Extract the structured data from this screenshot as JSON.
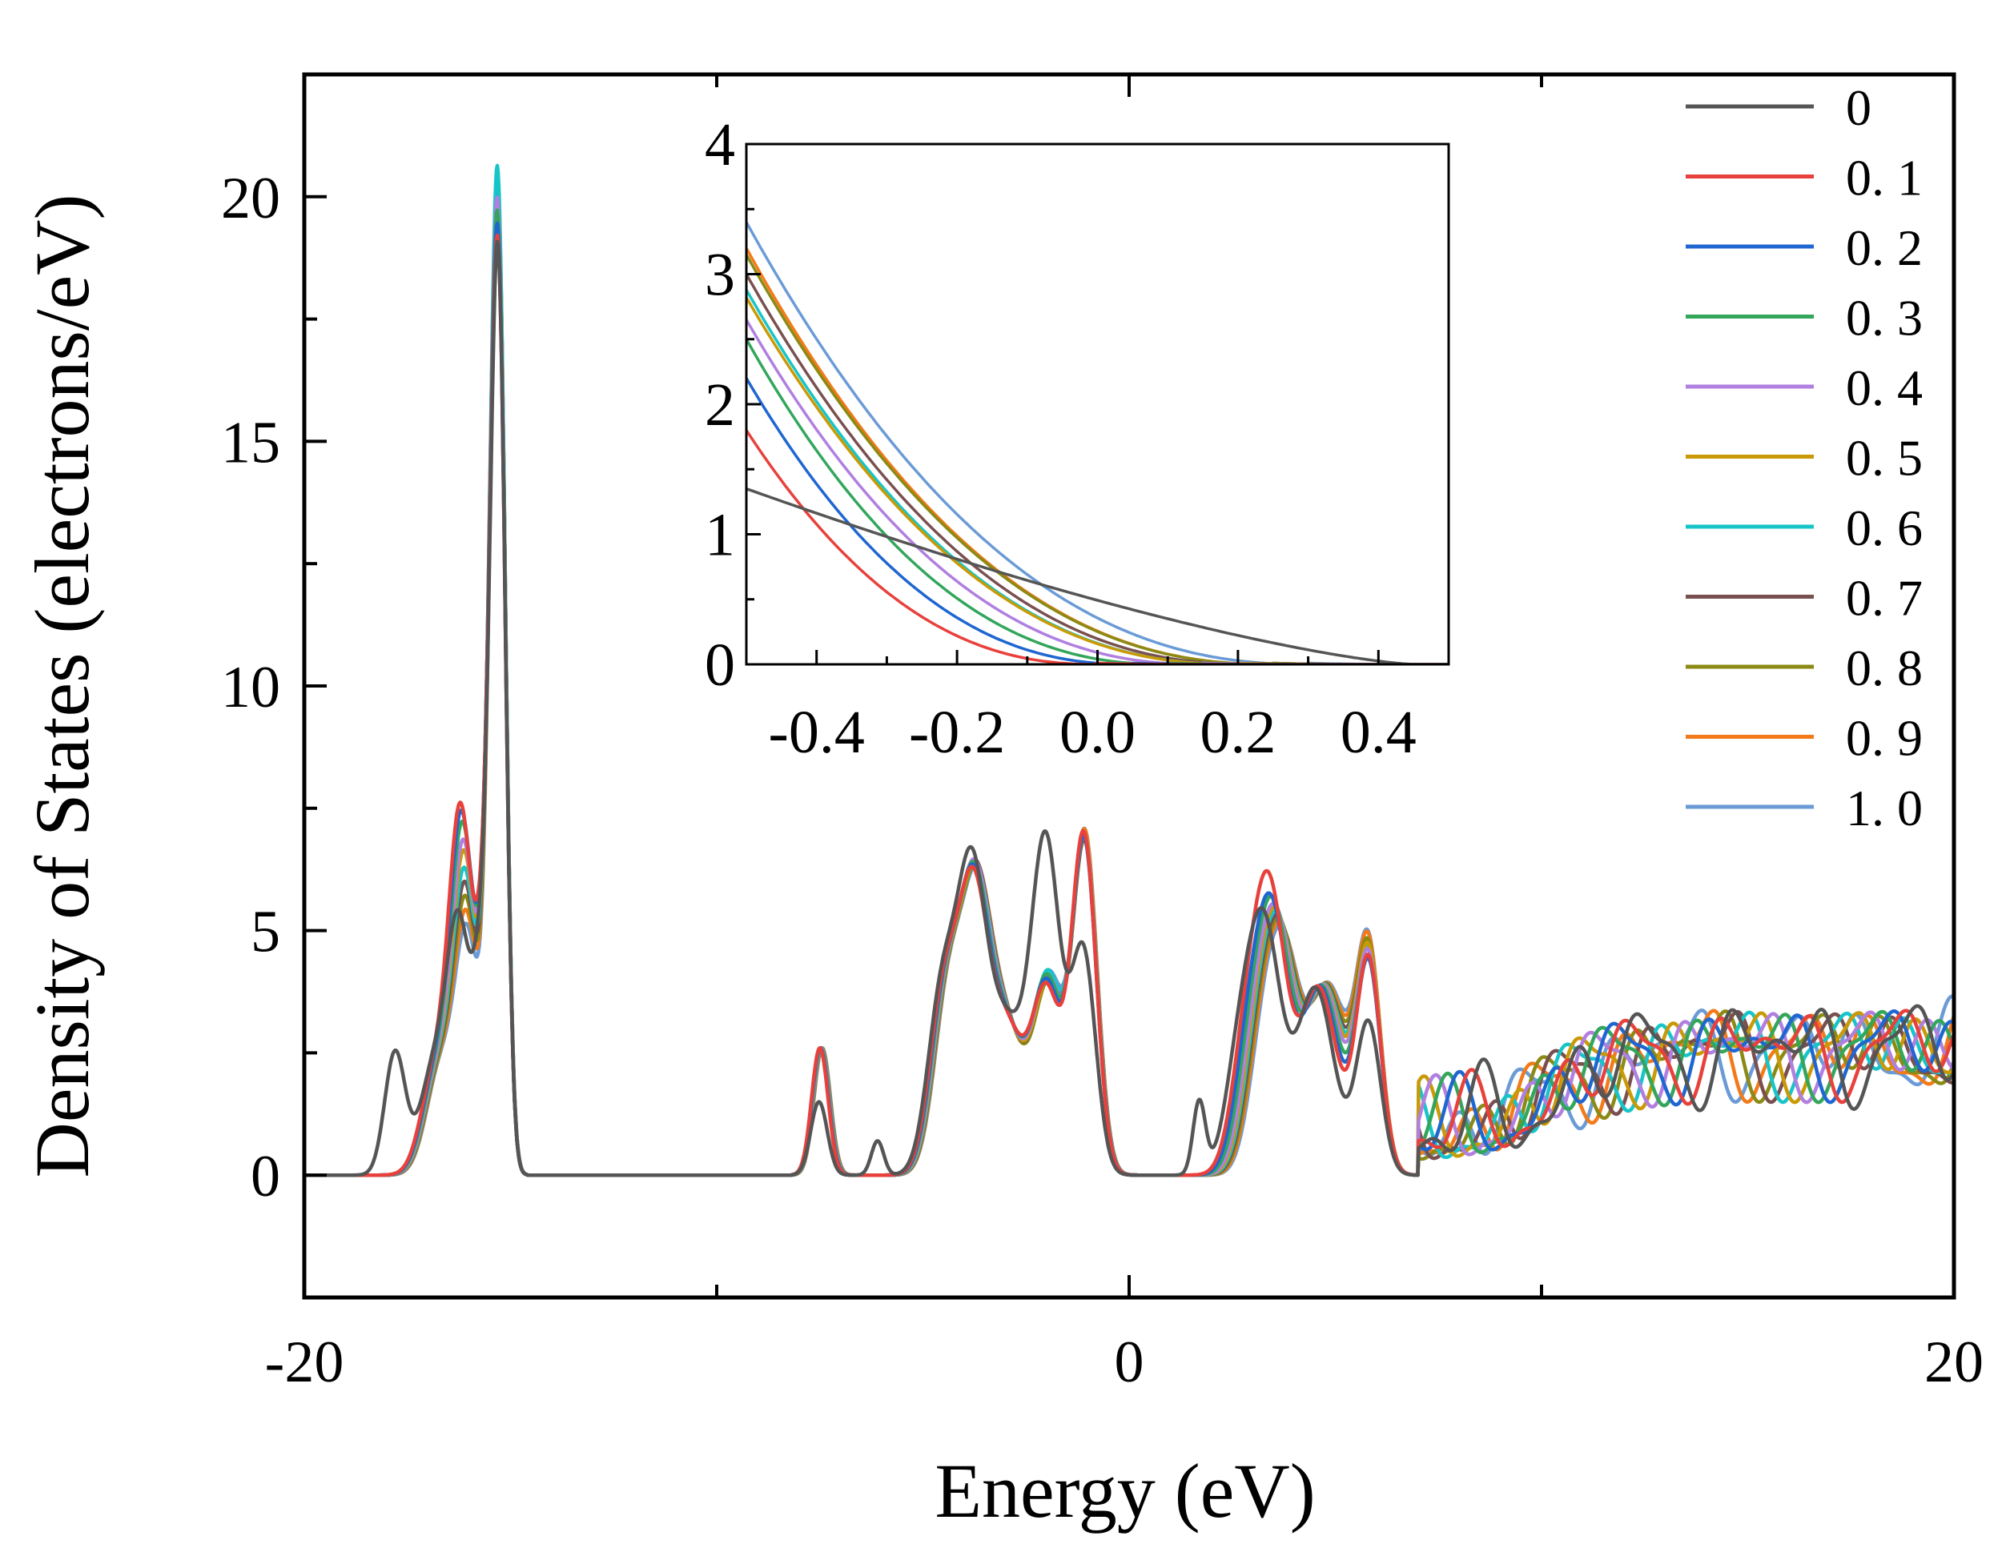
{
  "chart_data": [
    {
      "id": "main",
      "type": "line",
      "title": "",
      "xlabel": "Energy (eV)",
      "ylabel": "Density of States (electrons/eV)",
      "xlim": [
        -20,
        20
      ],
      "ylim": [
        -2.5,
        22.5
      ],
      "xticks": [
        -20,
        0,
        20
      ],
      "xtick_labels": [
        "-20",
        "0",
        "20"
      ],
      "xminor": [
        -10,
        10
      ],
      "yticks": [
        0,
        5,
        10,
        15,
        20
      ],
      "ytick_labels": [
        "0",
        "5",
        "10",
        "15",
        "20"
      ],
      "grid": false,
      "legend_position": "top-right",
      "series": [
        {
          "name": "0",
          "color": "#555555",
          "profile": {
            "shift": -0.2,
            "lowScale": 0.68,
            "sharpPeak": 17.9,
            "pre": 2.5,
            "valenceA": 5.7,
            "valenceB": 6.7,
            "valenceC": 4.5,
            "semicore": 1.5,
            "gap": 1.5,
            "conductionA": 4.9,
            "conductionB": 3.1,
            "ripple": 0.6
          }
        },
        {
          "name": "0. 1",
          "color": "#e8413c",
          "profile": {
            "shift": 0.0,
            "lowScale": 1.0,
            "sharpPeak": 17.4,
            "pre": 0,
            "valenceA": 5.2,
            "valenceB": 3.6,
            "valenceC": 6.9,
            "semicore": 2.6,
            "gap": 0,
            "conductionA": 5.6,
            "conductionB": 4.4,
            "ripple": 0.5
          }
        },
        {
          "name": "0. 2",
          "color": "#1f66d1",
          "profile": {
            "shift": 0.1,
            "lowScale": 0.98,
            "sharpPeak": 17.3,
            "pre": 0,
            "valenceA": 5.2,
            "valenceB": 3.7,
            "valenceC": 6.8,
            "semicore": 2.6,
            "gap": 0,
            "conductionA": 5.1,
            "conductionB": 4.3,
            "ripple": 0.5
          }
        },
        {
          "name": "0. 3",
          "color": "#33a65c",
          "profile": {
            "shift": 0.2,
            "lowScale": 0.95,
            "sharpPeak": 17.2,
            "pre": 0,
            "valenceA": 5.2,
            "valenceB": 3.8,
            "valenceC": 6.8,
            "semicore": 2.6,
            "gap": 0,
            "conductionA": 5.0,
            "conductionB": 4.3,
            "ripple": 0.5
          }
        },
        {
          "name": "0. 4",
          "color": "#b07fe0",
          "profile": {
            "shift": 0.3,
            "lowScale": 0.9,
            "sharpPeak": 17.1,
            "pre": 0,
            "valenceA": 5.2,
            "valenceB": 3.8,
            "valenceC": 6.8,
            "semicore": 2.6,
            "gap": 0,
            "conductionA": 4.8,
            "conductionB": 4.4,
            "ripple": 0.5
          }
        },
        {
          "name": "0. 5",
          "color": "#c99a06",
          "profile": {
            "shift": 0.35,
            "lowScale": 0.87,
            "sharpPeak": 16.9,
            "pre": 0,
            "valenceA": 5.1,
            "valenceB": 3.7,
            "valenceC": 6.8,
            "semicore": 2.6,
            "gap": 0,
            "conductionA": 4.7,
            "conductionB": 4.5,
            "ripple": 0.5
          }
        },
        {
          "name": "0. 6",
          "color": "#17c5c9",
          "profile": {
            "shift": 0.4,
            "lowScale": 0.82,
            "sharpPeak": 17.4,
            "pre": 0,
            "valenceA": 5.1,
            "valenceB": 3.9,
            "valenceC": 6.8,
            "semicore": 2.6,
            "gap": 0,
            "conductionA": 4.6,
            "conductionB": 4.4,
            "ripple": 0.5
          }
        },
        {
          "name": "0. 7",
          "color": "#7a4f4f",
          "profile": {
            "shift": 0.45,
            "lowScale": 0.78,
            "sharpPeak": 17.0,
            "pre": 0,
            "valenceA": 5.1,
            "valenceB": 3.8,
            "valenceC": 6.7,
            "semicore": 2.6,
            "gap": 0,
            "conductionA": 4.5,
            "conductionB": 4.4,
            "ripple": 0.5
          }
        },
        {
          "name": "0. 8",
          "color": "#8a8a14",
          "profile": {
            "shift": 0.5,
            "lowScale": 0.74,
            "sharpPeak": 16.8,
            "pre": 0,
            "valenceA": 5.0,
            "valenceB": 3.7,
            "valenceC": 6.7,
            "semicore": 2.6,
            "gap": 0,
            "conductionA": 4.4,
            "conductionB": 4.5,
            "ripple": 0.5
          }
        },
        {
          "name": "0. 9",
          "color": "#f27a1a",
          "profile": {
            "shift": 0.55,
            "lowScale": 0.7,
            "sharpPeak": 16.6,
            "pre": 0,
            "valenceA": 5.0,
            "valenceB": 3.8,
            "valenceC": 6.9,
            "semicore": 2.6,
            "gap": 0,
            "conductionA": 4.3,
            "conductionB": 4.6,
            "ripple": 0.5
          }
        },
        {
          "name": "1. 0",
          "color": "#6b9bd6",
          "profile": {
            "shift": 0.6,
            "lowScale": 0.66,
            "sharpPeak": 16.4,
            "pre": 0,
            "valenceA": 4.9,
            "valenceB": 3.9,
            "valenceC": 6.9,
            "semicore": 2.6,
            "gap": 0,
            "conductionA": 4.2,
            "conductionB": 4.6,
            "ripple": 0.5
          }
        }
      ]
    },
    {
      "id": "inset",
      "type": "line",
      "title": "",
      "xlabel": "",
      "ylabel": "",
      "xlim": [
        -0.5,
        0.5
      ],
      "ylim": [
        0,
        4
      ],
      "xticks": [
        -0.4,
        -0.2,
        0.0,
        0.2,
        0.4
      ],
      "xtick_labels": [
        "-0.4",
        "-0.2",
        "0.0",
        "0.2",
        "0.4"
      ],
      "yticks": [
        0,
        1,
        2,
        3,
        4
      ],
      "ytick_labels": [
        "0",
        "1",
        "2",
        "3",
        "4"
      ],
      "grid": false,
      "series": [
        {
          "name": "0",
          "color": "#555555",
          "model": "linear",
          "y_at_min": 1.35,
          "y_at_zero": 0.5,
          "zero_at": 0.45
        },
        {
          "name": "0. 1",
          "color": "#e8413c",
          "model": "power",
          "y_at_min": 1.8,
          "zero_at": 0.0,
          "p": 2.3
        },
        {
          "name": "0. 2",
          "color": "#1f66d1",
          "model": "power",
          "y_at_min": 2.2,
          "zero_at": 0.05,
          "p": 2.3
        },
        {
          "name": "0. 3",
          "color": "#33a65c",
          "model": "power",
          "y_at_min": 2.5,
          "zero_at": 0.1,
          "p": 2.3
        },
        {
          "name": "0. 4",
          "color": "#b07fe0",
          "model": "power",
          "y_at_min": 2.65,
          "zero_at": 0.15,
          "p": 2.3
        },
        {
          "name": "0. 5",
          "color": "#c99a06",
          "model": "power",
          "y_at_min": 2.82,
          "zero_at": 0.2,
          "p": 2.3
        },
        {
          "name": "0. 6",
          "color": "#17c5c9",
          "model": "power",
          "y_at_min": 2.88,
          "zero_at": 0.2,
          "p": 2.3
        },
        {
          "name": "0. 7",
          "color": "#7a4f4f",
          "model": "power",
          "y_at_min": 3.0,
          "zero_at": 0.22,
          "p": 2.3
        },
        {
          "name": "0. 8",
          "color": "#8a8a14",
          "model": "power",
          "y_at_min": 3.15,
          "zero_at": 0.25,
          "p": 2.3
        },
        {
          "name": "0. 9",
          "color": "#f27a1a",
          "model": "power",
          "y_at_min": 3.2,
          "zero_at": 0.25,
          "p": 2.3
        },
        {
          "name": "1. 0",
          "color": "#6b9bd6",
          "model": "power",
          "y_at_min": 3.4,
          "zero_at": 0.3,
          "p": 2.3
        }
      ]
    }
  ]
}
